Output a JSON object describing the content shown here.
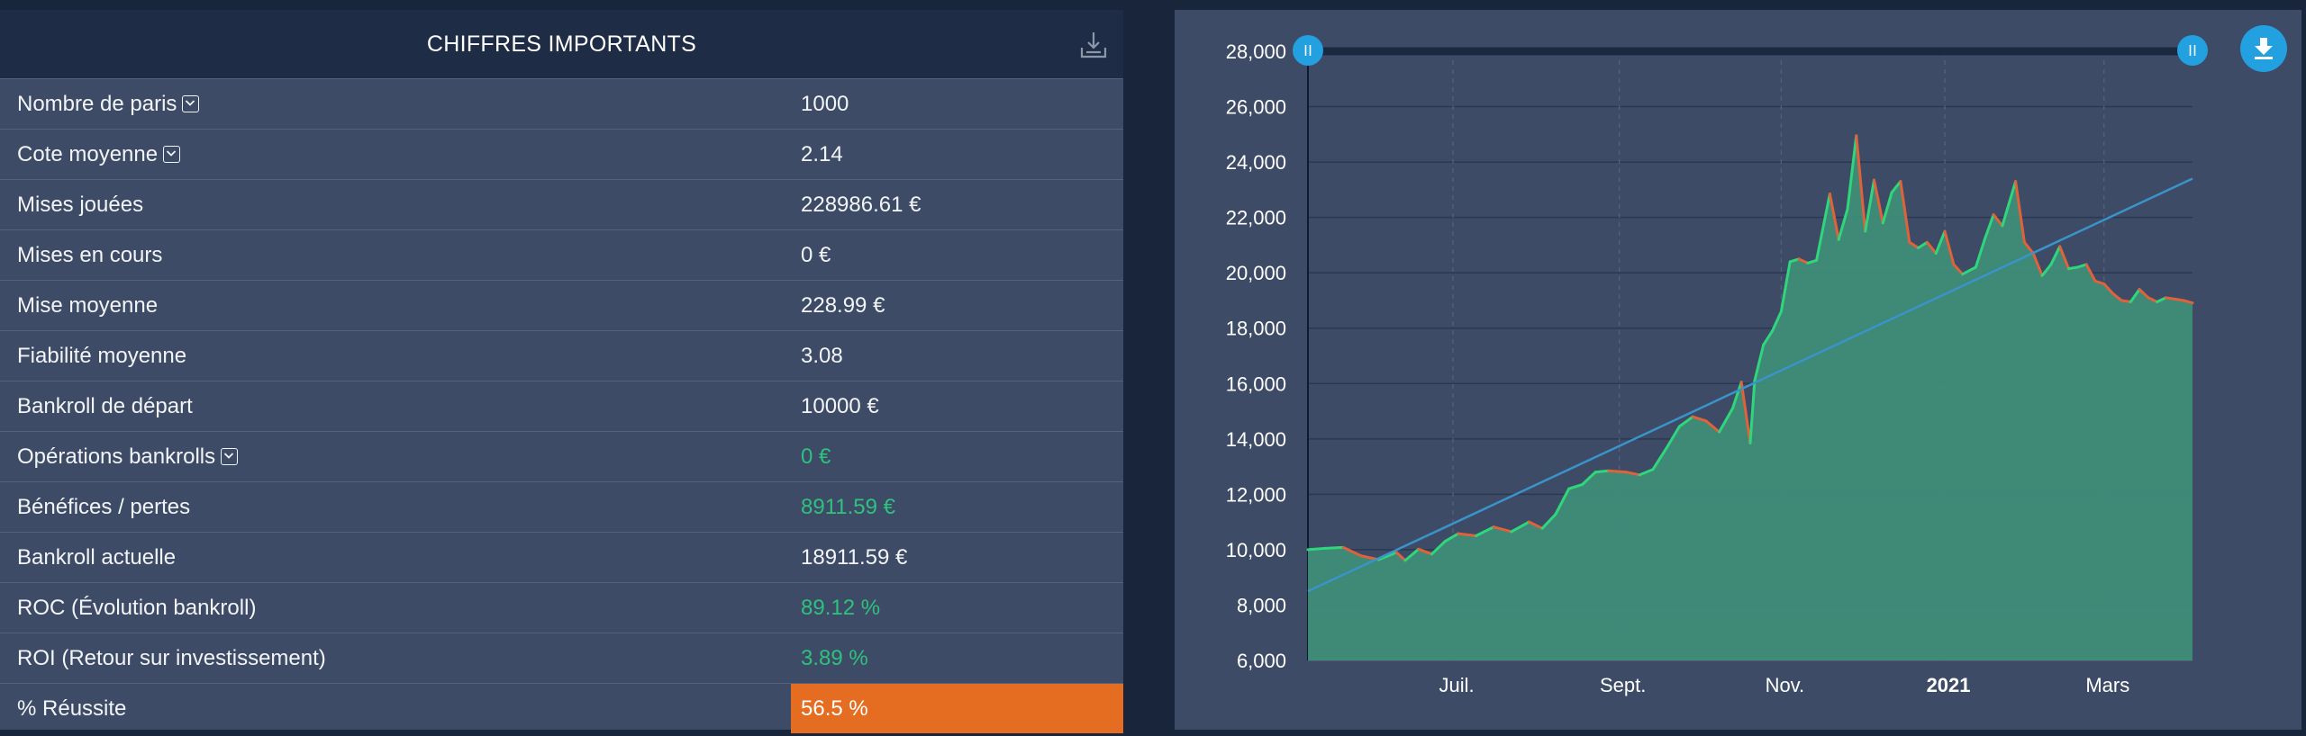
{
  "stats": {
    "title": "CHIFFRES IMPORTANTS",
    "export_icon": "download-tray-icon",
    "rows": [
      {
        "label": "Nombre de paris",
        "value": "1000",
        "toggle": true,
        "tone": "normal"
      },
      {
        "label": "Cote moyenne",
        "value": "2.14",
        "toggle": true,
        "tone": "normal"
      },
      {
        "label": "Mises jouées",
        "value": "228986.61 €",
        "toggle": false,
        "tone": "normal"
      },
      {
        "label": "Mises en cours",
        "value": "0 €",
        "toggle": false,
        "tone": "normal"
      },
      {
        "label": "Mise moyenne",
        "value": "228.99 €",
        "toggle": false,
        "tone": "normal"
      },
      {
        "label": "Fiabilité moyenne",
        "value": "3.08",
        "toggle": false,
        "tone": "normal"
      },
      {
        "label": "Bankroll de départ",
        "value": "10000 €",
        "toggle": false,
        "tone": "normal"
      },
      {
        "label": "Opérations bankrolls",
        "value": "0 €",
        "toggle": true,
        "tone": "positive"
      },
      {
        "label": "Bénéfices / pertes",
        "value": "8911.59 €",
        "toggle": false,
        "tone": "positive"
      },
      {
        "label": "Bankroll actuelle",
        "value": "18911.59 €",
        "toggle": false,
        "tone": "normal"
      },
      {
        "label": "ROC (Évolution bankroll)",
        "value": "89.12 %",
        "toggle": false,
        "tone": "positive"
      },
      {
        "label": "ROI (Retour sur investissement)",
        "value": "3.89 %",
        "toggle": false,
        "tone": "positive"
      },
      {
        "label": "% Réussite",
        "value": "56.5 %",
        "toggle": false,
        "tone": "highlight"
      }
    ]
  },
  "colors": {
    "positive": "#2ec27e",
    "highlight": "#e56d22",
    "area_fill": "#3f8c78",
    "line_up": "#2fd67c",
    "line_down": "#e0623a",
    "trend": "#3a93c9",
    "accent": "#22a0df"
  },
  "chart": {
    "download_icon": "download-icon",
    "slider_handle_left": "slider-handle-icon",
    "slider_handle_right": "slider-handle-icon"
  },
  "chart_data": {
    "type": "area",
    "title": "",
    "xlabel": "",
    "ylabel": "",
    "x_tick_labels": [
      "Juil.",
      "Sept.",
      "Nov.",
      "2021",
      "Mars"
    ],
    "x_tick_positions": [
      0.164,
      0.352,
      0.535,
      0.72,
      0.9
    ],
    "bold_tick_labels": [
      "2021"
    ],
    "y_ticks": [
      6000,
      8000,
      10000,
      12000,
      14000,
      16000,
      18000,
      20000,
      22000,
      24000,
      26000,
      28000
    ],
    "ylim": [
      6000,
      28000
    ],
    "grid": true,
    "legend": "none",
    "series": [
      {
        "values": [
          [
            0.0,
            10000
          ],
          [
            0.02,
            10050
          ],
          [
            0.04,
            10080
          ],
          [
            0.06,
            9780
          ],
          [
            0.08,
            9640
          ],
          [
            0.1,
            9900
          ],
          [
            0.11,
            9610
          ],
          [
            0.125,
            10020
          ],
          [
            0.14,
            9840
          ],
          [
            0.155,
            10300
          ],
          [
            0.17,
            10580
          ],
          [
            0.19,
            10500
          ],
          [
            0.21,
            10820
          ],
          [
            0.23,
            10650
          ],
          [
            0.25,
            11000
          ],
          [
            0.265,
            10770
          ],
          [
            0.28,
            11280
          ],
          [
            0.295,
            12200
          ],
          [
            0.31,
            12350
          ],
          [
            0.325,
            12800
          ],
          [
            0.34,
            12850
          ],
          [
            0.36,
            12800
          ],
          [
            0.375,
            12700
          ],
          [
            0.39,
            12900
          ],
          [
            0.405,
            13650
          ],
          [
            0.42,
            14450
          ],
          [
            0.435,
            14800
          ],
          [
            0.45,
            14650
          ],
          [
            0.465,
            14250
          ],
          [
            0.48,
            15100
          ],
          [
            0.49,
            16050
          ],
          [
            0.5,
            13850
          ],
          [
            0.505,
            16100
          ],
          [
            0.515,
            17400
          ],
          [
            0.525,
            17900
          ],
          [
            0.535,
            18600
          ],
          [
            0.545,
            20400
          ],
          [
            0.555,
            20500
          ],
          [
            0.565,
            20350
          ],
          [
            0.575,
            20450
          ],
          [
            0.59,
            22850
          ],
          [
            0.6,
            21200
          ],
          [
            0.61,
            22300
          ],
          [
            0.62,
            24950
          ],
          [
            0.63,
            21500
          ],
          [
            0.64,
            23350
          ],
          [
            0.65,
            21800
          ],
          [
            0.66,
            22900
          ],
          [
            0.67,
            23300
          ],
          [
            0.68,
            21100
          ],
          [
            0.69,
            20900
          ],
          [
            0.7,
            21100
          ],
          [
            0.71,
            20700
          ],
          [
            0.72,
            21500
          ],
          [
            0.73,
            20300
          ],
          [
            0.74,
            19950
          ],
          [
            0.755,
            20200
          ],
          [
            0.765,
            21200
          ],
          [
            0.775,
            22100
          ],
          [
            0.785,
            21700
          ],
          [
            0.8,
            23300
          ],
          [
            0.81,
            21100
          ],
          [
            0.82,
            20700
          ],
          [
            0.83,
            19900
          ],
          [
            0.84,
            20300
          ],
          [
            0.85,
            20950
          ],
          [
            0.86,
            20150
          ],
          [
            0.87,
            20200
          ],
          [
            0.88,
            20300
          ],
          [
            0.89,
            19700
          ],
          [
            0.9,
            19600
          ],
          [
            0.91,
            19250
          ],
          [
            0.92,
            19000
          ],
          [
            0.93,
            18950
          ],
          [
            0.94,
            19400
          ],
          [
            0.95,
            19100
          ],
          [
            0.96,
            18950
          ],
          [
            0.97,
            19100
          ],
          [
            0.98,
            19050
          ],
          [
            0.99,
            19000
          ],
          [
            1.0,
            18911.59
          ]
        ]
      }
    ],
    "trend_line": [
      [
        0.0,
        8500
      ],
      [
        1.0,
        23400
      ]
    ]
  }
}
